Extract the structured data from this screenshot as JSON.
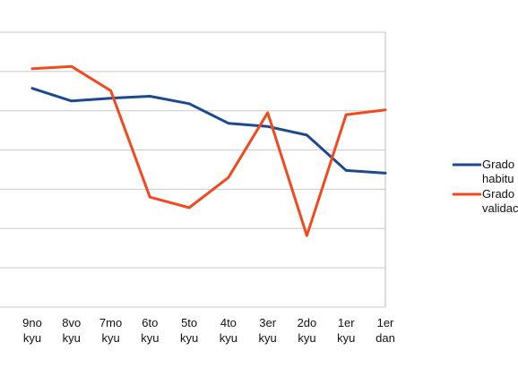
{
  "chart_data": {
    "type": "line",
    "categories": [
      [
        "9no",
        "kyu"
      ],
      [
        "8vo",
        "kyu"
      ],
      [
        "7mo",
        "kyu"
      ],
      [
        "6to",
        "kyu"
      ],
      [
        "5to",
        "kyu"
      ],
      [
        "4to",
        "kyu"
      ],
      [
        "3er",
        "kyu"
      ],
      [
        "2do",
        "kyu"
      ],
      [
        "1er",
        "kyu"
      ],
      [
        "1er",
        "dan"
      ]
    ],
    "ylim": [
      0,
      7
    ],
    "grid": true,
    "legend_position": "right",
    "series": [
      {
        "name": [
          "Grado",
          "habitu"
        ],
        "color": "#1d4a8c",
        "values": [
          5.57,
          5.25,
          5.32,
          5.37,
          5.18,
          4.68,
          4.6,
          4.38,
          3.48,
          3.41
        ]
      },
      {
        "name": [
          "Grado",
          "validac"
        ],
        "color": "#f14a1e",
        "values": [
          6.07,
          6.13,
          5.51,
          2.8,
          2.53,
          3.3,
          4.95,
          1.82,
          4.9,
          5.02
        ]
      }
    ]
  }
}
